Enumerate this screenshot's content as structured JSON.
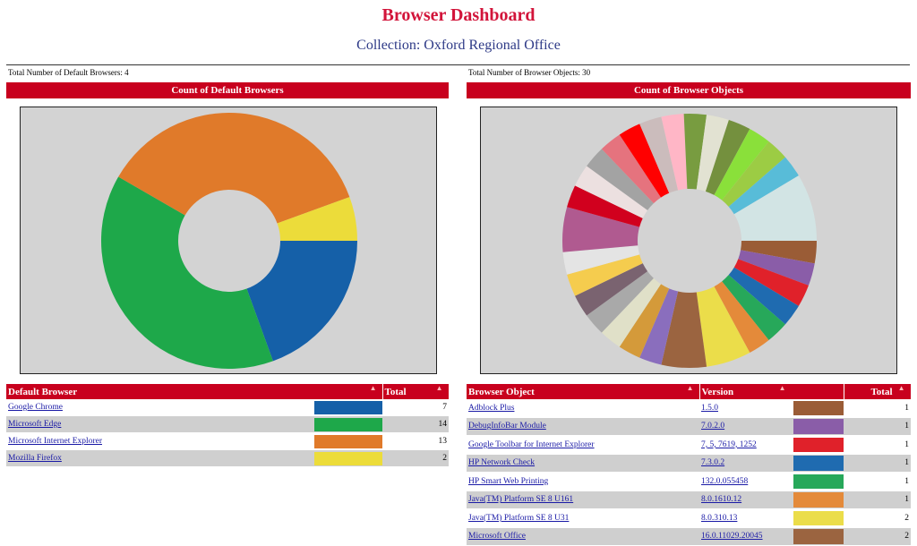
{
  "header": {
    "title": "Browser Dashboard",
    "subtitle": "Collection: Oxford Regional Office"
  },
  "left": {
    "total_text": "Total Number of Default Browsers: 4",
    "bar_title": "Count of Default Browsers",
    "columns": [
      "Default Browser",
      "Total"
    ],
    "sort_icon": "sort-icon",
    "rows": [
      {
        "name": "Google Chrome",
        "color": "#1560a8",
        "total": "7"
      },
      {
        "name": "Microsoft Edge",
        "color": "#1ea84a",
        "total": "14"
      },
      {
        "name": "Microsoft Internet Explorer",
        "color": "#e07a2a",
        "total": "13"
      },
      {
        "name": "Mozilla Firefox",
        "color": "#ecdc3a",
        "total": "2"
      }
    ]
  },
  "right": {
    "total_text": "Total Number of Browser Objects: 30",
    "bar_title": "Count of Browser Objects",
    "columns": [
      "Browser Object",
      "Version",
      "Total"
    ],
    "rows": [
      {
        "name": "Adblock Plus",
        "version": "1.5.0",
        "color": "#9a5c36",
        "total": "1"
      },
      {
        "name": "DebugInfoBar Module",
        "version": "7.0.2.0",
        "color": "#8a5da8",
        "total": "1"
      },
      {
        "name": "Google Toolbar for Internet Explorer",
        "version": "7, 5, 7619, 1252",
        "color": "#e0212a",
        "total": "1"
      },
      {
        "name": "HP Network Check",
        "version": "7.3.0.2",
        "color": "#1f6bb0",
        "total": "1"
      },
      {
        "name": "HP Smart Web Printing",
        "version": "132.0.055458",
        "color": "#27a85a",
        "total": "1"
      },
      {
        "name": "Java(TM) Platform SE 8 U161",
        "version": "8.0.1610.12",
        "color": "#e48a3a",
        "total": "1"
      },
      {
        "name": "Java(TM) Platform SE 8 U31",
        "version": "8.0.310.13",
        "color": "#ebdd4a",
        "total": "2"
      },
      {
        "name": "Microsoft Office",
        "version": "16.0.11029.20045",
        "color": "#9b6440",
        "total": "2"
      }
    ]
  },
  "chart_data": [
    {
      "type": "pie",
      "title": "Count of Default Browsers",
      "categories": [
        "Google Chrome",
        "Microsoft Edge",
        "Microsoft Internet Explorer",
        "Mozilla Firefox"
      ],
      "values": [
        7,
        14,
        13,
        2
      ],
      "colors": [
        "#1560a8",
        "#1ea84a",
        "#e07a2a",
        "#ecdc3a"
      ],
      "donut": true,
      "start": "3 o'clock, clockwise",
      "legend": "none"
    },
    {
      "type": "pie",
      "title": "Count of Browser Objects",
      "values": [
        1,
        1,
        1,
        1,
        1,
        1,
        2,
        2,
        1,
        1,
        1,
        1,
        1,
        1,
        1,
        2,
        1,
        1,
        1,
        1,
        1,
        1,
        1,
        1,
        1,
        1,
        1,
        1,
        1,
        3
      ],
      "colors": [
        "#9a5c36",
        "#8a5da8",
        "#e0212a",
        "#1f6bb0",
        "#27a85a",
        "#e48a3a",
        "#ebdd4a",
        "#9b6440",
        "#8a6ebd",
        "#d49a3a",
        "#e0e0c8",
        "#a9a9a9",
        "#7a6370",
        "#f5cc4e",
        "#e4e4e4",
        "#b05a90",
        "#d1001e",
        "#ece0e0",
        "#a3a3a3",
        "#e5737e",
        "#ff0000",
        "#cbbcbc",
        "#ffb6c6",
        "#789c40",
        "#e2e2d2",
        "#74903e",
        "#8ae03a",
        "#9ccc44",
        "#58bcd8",
        "#d2e4e4"
      ],
      "donut": true,
      "start": "3 o'clock, clockwise",
      "legend": "none"
    }
  ]
}
